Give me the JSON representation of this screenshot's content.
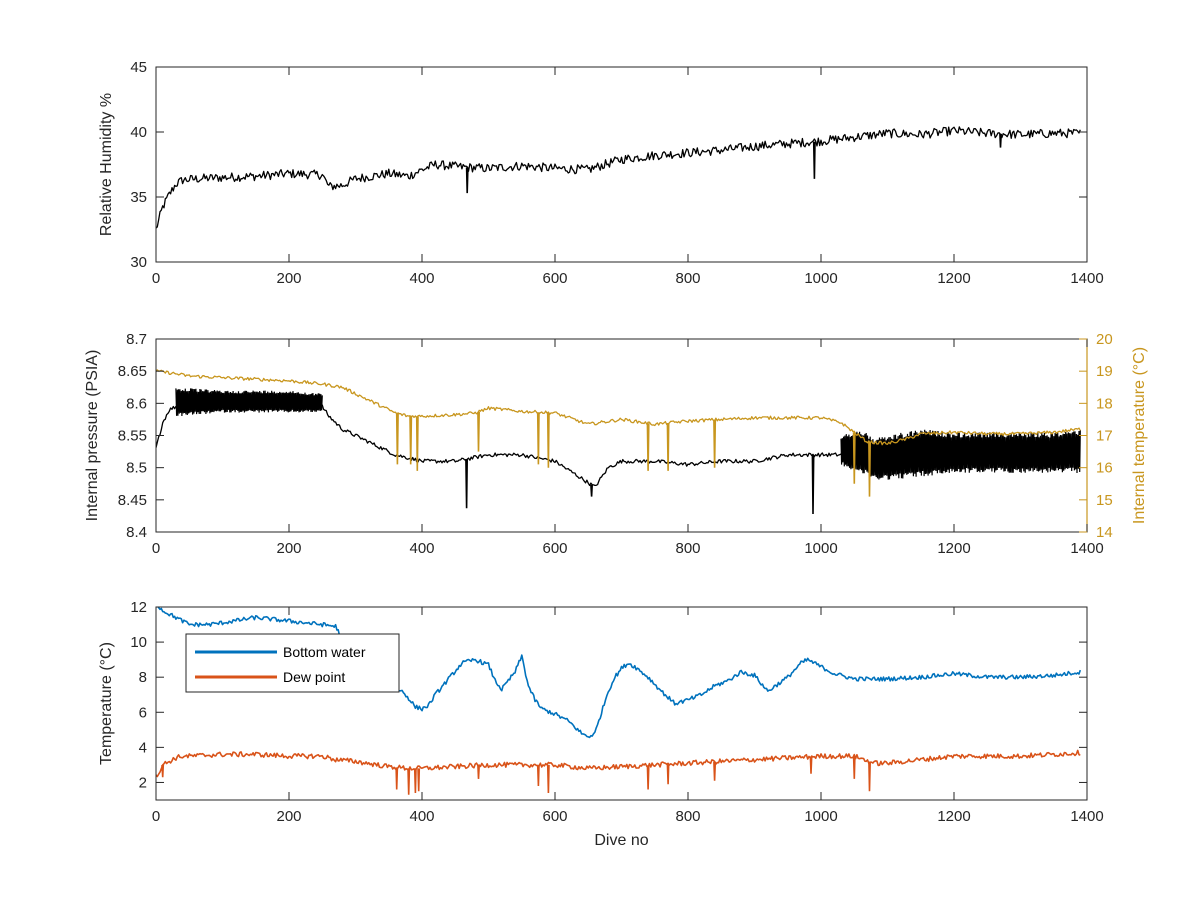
{
  "colors": {
    "black": "#000000",
    "gold": "#C8961E",
    "blue": "#0072BD",
    "orange": "#D95319",
    "axis": "#262626"
  },
  "chart_data": [
    {
      "type": "line",
      "xlabel": "",
      "ylabel": "Relative Humidity %",
      "xlim": [
        0,
        1400
      ],
      "ylim": [
        30,
        45
      ],
      "xticks": [
        0,
        200,
        400,
        600,
        800,
        1000,
        1200,
        1400
      ],
      "yticks": [
        30,
        35,
        40,
        45
      ],
      "grid": false,
      "series": [
        {
          "color": "#000000",
          "noise": 0.35,
          "x": [
            0,
            10,
            20,
            30,
            40,
            60,
            100,
            150,
            200,
            250,
            260,
            280,
            300,
            350,
            380,
            400,
            420,
            460,
            500,
            550,
            600,
            650,
            700,
            750,
            800,
            850,
            900,
            950,
            1000,
            1050,
            1100,
            1150,
            1200,
            1250,
            1300,
            1350,
            1390
          ],
          "y": [
            32.5,
            34.2,
            35.2,
            36.0,
            36.3,
            36.4,
            36.5,
            36.6,
            36.8,
            36.7,
            35.8,
            35.9,
            36.4,
            36.8,
            36.6,
            37.1,
            37.5,
            37.3,
            37.2,
            37.4,
            37.2,
            37.1,
            37.9,
            38.2,
            38.4,
            38.6,
            38.9,
            39.1,
            39.3,
            39.6,
            39.9,
            39.8,
            40.1,
            39.9,
            39.8,
            39.9,
            39.9
          ]
        }
      ],
      "spikes": [
        {
          "x": 468,
          "y": 35.3
        },
        {
          "x": 990,
          "y": 36.4
        },
        {
          "x": 1270,
          "y": 38.8
        }
      ]
    },
    {
      "type": "line",
      "xlabel": "",
      "ylabel": "Internal pressure (PSIA)",
      "y2label": "Internal temperature (°C)",
      "xlim": [
        0,
        1400
      ],
      "ylim": [
        8.4,
        8.7
      ],
      "y2lim": [
        14,
        20
      ],
      "xticks": [
        0,
        200,
        400,
        600,
        800,
        1000,
        1200,
        1400
      ],
      "yticks": [
        8.4,
        8.45,
        8.5,
        8.55,
        8.6,
        8.65,
        8.7
      ],
      "y2ticks": [
        14,
        15,
        16,
        17,
        18,
        19,
        20
      ],
      "grid": false,
      "series": [
        {
          "axis": "left",
          "color": "#000000",
          "noise": 0.003,
          "x": [
            0,
            10,
            20,
            30,
            50,
            100,
            150,
            200,
            250,
            260,
            280,
            300,
            320,
            340,
            360,
            380,
            400,
            450,
            500,
            550,
            600,
            630,
            660,
            680,
            700,
            750,
            800,
            850,
            900,
            950,
            1000,
            1030
          ],
          "y": [
            8.53,
            8.57,
            8.59,
            8.595,
            8.6,
            8.6,
            8.6,
            8.598,
            8.595,
            8.58,
            8.56,
            8.55,
            8.54,
            8.53,
            8.52,
            8.515,
            8.51,
            8.51,
            8.52,
            8.52,
            8.51,
            8.49,
            8.47,
            8.5,
            8.51,
            8.51,
            8.505,
            8.51,
            8.51,
            8.52,
            8.52,
            8.52
          ]
        },
        {
          "axis": "left",
          "color": "#000000",
          "band": true,
          "x": [
            30,
            100,
            200,
            250
          ],
          "ylow": [
            8.585,
            8.59,
            8.59,
            8.59
          ],
          "yhigh": [
            8.625,
            8.62,
            8.62,
            8.615
          ]
        },
        {
          "axis": "left",
          "color": "#000000",
          "band": true,
          "x": [
            1030,
            1060,
            1080,
            1100,
            1150,
            1200,
            1250,
            1300,
            1350,
            1390
          ],
          "ylow": [
            8.51,
            8.5,
            8.49,
            8.49,
            8.495,
            8.5,
            8.5,
            8.5,
            8.5,
            8.5
          ],
          "yhigh": [
            8.55,
            8.56,
            8.545,
            8.55,
            8.56,
            8.555,
            8.555,
            8.555,
            8.555,
            8.56
          ]
        },
        {
          "axis": "right",
          "color": "#C8961E",
          "noise": 0.05,
          "x": [
            0,
            20,
            50,
            100,
            150,
            200,
            250,
            280,
            300,
            320,
            340,
            360,
            380,
            400,
            450,
            480,
            500,
            550,
            600,
            650,
            700,
            750,
            800,
            850,
            900,
            950,
            1000,
            1030,
            1050,
            1070,
            1100,
            1130,
            1150,
            1200,
            1250,
            1300,
            1350,
            1390
          ],
          "y": [
            19.0,
            18.95,
            18.85,
            18.8,
            18.75,
            18.7,
            18.6,
            18.5,
            18.3,
            18.1,
            17.9,
            17.7,
            17.6,
            17.6,
            17.65,
            17.7,
            17.85,
            17.75,
            17.7,
            17.35,
            17.5,
            17.35,
            17.45,
            17.5,
            17.55,
            17.55,
            17.55,
            17.4,
            17.1,
            16.8,
            16.75,
            16.9,
            17.05,
            17.1,
            17.05,
            17.05,
            17.1,
            17.2
          ]
        }
      ],
      "spikes": [
        {
          "x": 467,
          "y": 8.437,
          "axis": "left"
        },
        {
          "x": 655,
          "y": 8.455,
          "axis": "left"
        },
        {
          "x": 988,
          "y": 8.428,
          "axis": "left"
        },
        {
          "x": 363,
          "y": 16.1,
          "axis": "right"
        },
        {
          "x": 383,
          "y": 16.1,
          "axis": "right"
        },
        {
          "x": 393,
          "y": 15.9,
          "axis": "right"
        },
        {
          "x": 485,
          "y": 16.5,
          "axis": "right"
        },
        {
          "x": 575,
          "y": 16.1,
          "axis": "right"
        },
        {
          "x": 590,
          "y": 16.0,
          "axis": "right"
        },
        {
          "x": 740,
          "y": 15.9,
          "axis": "right"
        },
        {
          "x": 770,
          "y": 15.9,
          "axis": "right"
        },
        {
          "x": 840,
          "y": 16.0,
          "axis": "right"
        },
        {
          "x": 1050,
          "y": 15.5,
          "axis": "right"
        },
        {
          "x": 1073,
          "y": 15.1,
          "axis": "right"
        }
      ]
    },
    {
      "type": "line",
      "xlabel": "Dive no",
      "ylabel": "Temperature (°C)",
      "xlim": [
        0,
        1400
      ],
      "ylim": [
        1,
        12
      ],
      "xticks": [
        0,
        200,
        400,
        600,
        800,
        1000,
        1200,
        1400
      ],
      "yticks": [
        2,
        4,
        6,
        8,
        10,
        12
      ],
      "grid": false,
      "legend": "top-left",
      "series": [
        {
          "name": "Bottom water",
          "color": "#0072BD",
          "noise": 0.12,
          "x": [
            0,
            5,
            10,
            20,
            30,
            40,
            50,
            80,
            100,
            150,
            200,
            250,
            270,
            290,
            300,
            330,
            350,
            370,
            380,
            390,
            400,
            410,
            420,
            440,
            460,
            480,
            500,
            510,
            520,
            540,
            550,
            560,
            570,
            580,
            600,
            620,
            640,
            650,
            660,
            670,
            680,
            690,
            700,
            710,
            720,
            730,
            740,
            760,
            780,
            800,
            820,
            840,
            860,
            880,
            900,
            920,
            950,
            970,
            980,
            1000,
            1020,
            1050,
            1080,
            1100,
            1150,
            1200,
            1250,
            1300,
            1350,
            1390
          ],
          "y": [
            12.2,
            12.0,
            11.8,
            11.6,
            11.4,
            11.2,
            11.0,
            11.0,
            11.1,
            11.4,
            11.2,
            11.0,
            10.9,
            9.5,
            8.5,
            7.8,
            7.5,
            7.2,
            6.8,
            6.3,
            6.2,
            6.4,
            7.0,
            7.9,
            8.8,
            9.0,
            8.7,
            7.8,
            7.3,
            8.3,
            9.2,
            7.5,
            6.7,
            6.2,
            5.9,
            5.5,
            4.8,
            4.6,
            4.8,
            6.0,
            7.2,
            8.0,
            8.5,
            8.8,
            8.6,
            8.3,
            8.0,
            7.2,
            6.5,
            6.7,
            7.0,
            7.5,
            7.8,
            8.3,
            8.1,
            7.2,
            8.0,
            8.8,
            9.0,
            8.6,
            8.2,
            7.9,
            7.9,
            7.9,
            8.0,
            8.2,
            8.0,
            8.0,
            8.1,
            8.3
          ]
        },
        {
          "name": "Dew point",
          "color": "#D95319",
          "noise": 0.14,
          "x": [
            0,
            5,
            10,
            20,
            30,
            40,
            50,
            100,
            150,
            200,
            250,
            270,
            300,
            350,
            380,
            400,
            450,
            500,
            550,
            600,
            650,
            700,
            750,
            800,
            850,
            900,
            950,
            1000,
            1050,
            1080,
            1100,
            1150,
            1200,
            1250,
            1300,
            1350,
            1390
          ],
          "y": [
            2.4,
            2.6,
            3.0,
            3.2,
            3.4,
            3.5,
            3.5,
            3.6,
            3.6,
            3.5,
            3.5,
            3.3,
            3.2,
            2.9,
            2.8,
            2.8,
            2.9,
            3.0,
            3.0,
            3.0,
            2.8,
            2.9,
            3.0,
            3.1,
            3.2,
            3.3,
            3.4,
            3.5,
            3.5,
            3.1,
            3.1,
            3.3,
            3.5,
            3.5,
            3.5,
            3.6,
            3.7
          ]
        }
      ],
      "spikes": [
        {
          "x": 10,
          "y": 2.3,
          "series": 1
        },
        {
          "x": 362,
          "y": 1.6,
          "series": 1
        },
        {
          "x": 380,
          "y": 1.3,
          "series": 1
        },
        {
          "x": 390,
          "y": 1.4,
          "series": 1
        },
        {
          "x": 395,
          "y": 1.5,
          "series": 1
        },
        {
          "x": 485,
          "y": 2.2,
          "series": 1
        },
        {
          "x": 575,
          "y": 1.8,
          "series": 1
        },
        {
          "x": 590,
          "y": 1.4,
          "series": 1
        },
        {
          "x": 740,
          "y": 1.6,
          "series": 1
        },
        {
          "x": 770,
          "y": 1.9,
          "series": 1
        },
        {
          "x": 840,
          "y": 2.1,
          "series": 1
        },
        {
          "x": 985,
          "y": 2.5,
          "series": 1
        },
        {
          "x": 1050,
          "y": 2.2,
          "series": 1
        },
        {
          "x": 1073,
          "y": 1.5,
          "series": 1
        }
      ]
    }
  ]
}
